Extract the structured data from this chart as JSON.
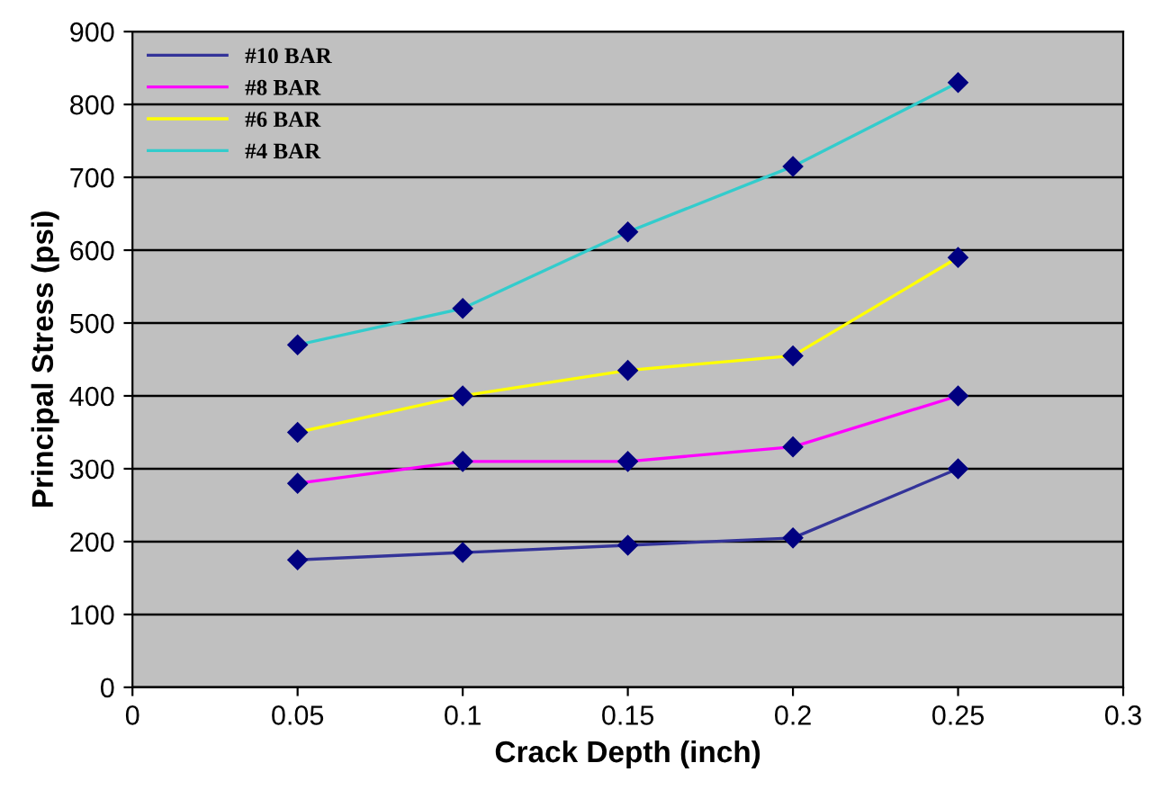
{
  "chart_data": {
    "type": "line",
    "xlabel": "Crack Depth (inch)",
    "ylabel": "Principal Stress (psi)",
    "x": [
      0.05,
      0.1,
      0.15,
      0.2,
      0.25
    ],
    "series": [
      {
        "name": "#10 BAR",
        "color": "#333399",
        "values": [
          175,
          185,
          195,
          205,
          300
        ]
      },
      {
        "name": "#8 BAR",
        "color": "#ff00ff",
        "values": [
          280,
          310,
          310,
          330,
          400
        ]
      },
      {
        "name": "#6 BAR",
        "color": "#ffff00",
        "values": [
          350,
          400,
          435,
          455,
          590
        ]
      },
      {
        "name": "#4 BAR",
        "color": "#33cccc",
        "values": [
          470,
          520,
          625,
          715,
          830
        ]
      }
    ],
    "xlim": [
      0,
      0.3
    ],
    "xticks": [
      0,
      0.05,
      0.1,
      0.15,
      0.2,
      0.25,
      0.3
    ],
    "ylim": [
      0,
      900
    ],
    "yticks": [
      0,
      100,
      200,
      300,
      400,
      500,
      600,
      700,
      800,
      900
    ],
    "grid": "y",
    "legend": "top left",
    "marker": "diamond",
    "line_style": "solid"
  }
}
